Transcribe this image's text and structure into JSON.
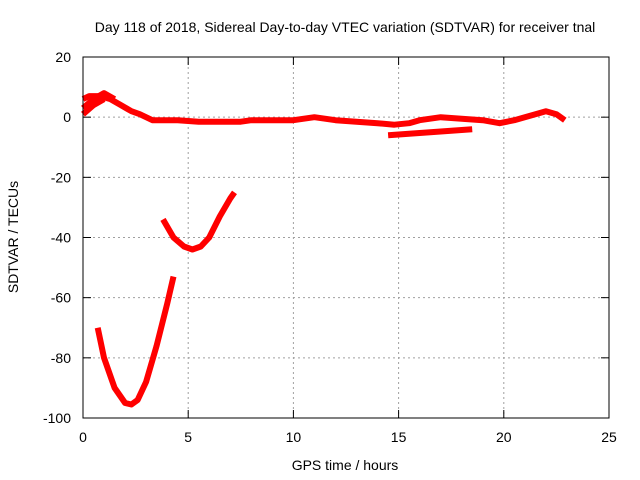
{
  "chart_data": {
    "type": "line",
    "title": "Day 118 of 2018, Sidereal Day-to-day VTEC variation (SDTVAR) for receiver tnal",
    "xlabel": "GPS time / hours",
    "ylabel": "SDTVAR / TECUs",
    "xlim": [
      0,
      25
    ],
    "ylim": [
      -100,
      20
    ],
    "xticks": [
      0,
      5,
      10,
      15,
      20,
      25
    ],
    "yticks": [
      20,
      0,
      -20,
      -40,
      -60,
      -80,
      -100
    ],
    "grid": true,
    "series": [
      {
        "name": "main-trace",
        "color": "#ff0000",
        "x": [
          0.0,
          0.3,
          0.8,
          1.3,
          1.8,
          2.3,
          2.7,
          3.0,
          3.3,
          3.8,
          4.5,
          5.5,
          6.5,
          7.5,
          8.0,
          9.0,
          10.0,
          11.0,
          12.0,
          13.0,
          14.0,
          14.8,
          15.5,
          16.0,
          17.0,
          18.0,
          19.0,
          19.8,
          20.5,
          21.0,
          21.5,
          22.0,
          22.5,
          22.9
        ],
        "y": [
          6,
          7,
          7,
          6,
          4,
          2,
          1,
          0,
          -1,
          -1,
          -1,
          -1.5,
          -1.5,
          -1.5,
          -1,
          -1,
          -1,
          0,
          -1,
          -1.5,
          -2,
          -2.5,
          -2,
          -1,
          0,
          -0.5,
          -1,
          -2,
          -1,
          0,
          1,
          2,
          1,
          -1
        ]
      },
      {
        "name": "upper-trace",
        "color": "#ff0000",
        "x": [
          0.0,
          0.5,
          1.0,
          1.5
        ],
        "y": [
          3,
          6,
          8,
          6
        ]
      },
      {
        "name": "lower-trace",
        "color": "#ff0000",
        "x": [
          0.0,
          0.5,
          1.0
        ],
        "y": [
          1,
          4,
          6
        ]
      },
      {
        "name": "late-offset-trace",
        "color": "#ff0000",
        "x": [
          14.5,
          15.5,
          16.5,
          17.5,
          18.5
        ],
        "y": [
          -6,
          -5.5,
          -5,
          -4.5,
          -4
        ]
      },
      {
        "name": "deep-dip-arc",
        "color": "#ff0000",
        "x": [
          0.7,
          1.0,
          1.5,
          2.0,
          2.3,
          2.6,
          3.0,
          3.5,
          4.0,
          4.3
        ],
        "y": [
          -70,
          -80,
          -90,
          -95,
          -95.5,
          -94,
          -88,
          -76,
          -62,
          -53
        ]
      },
      {
        "name": "shallow-dip-arc",
        "color": "#ff0000",
        "x": [
          3.8,
          4.3,
          4.8,
          5.2,
          5.6,
          6.0,
          6.5,
          7.0,
          7.2
        ],
        "y": [
          -34,
          -40,
          -43,
          -44,
          -43,
          -40,
          -33,
          -27,
          -25
        ]
      }
    ]
  }
}
